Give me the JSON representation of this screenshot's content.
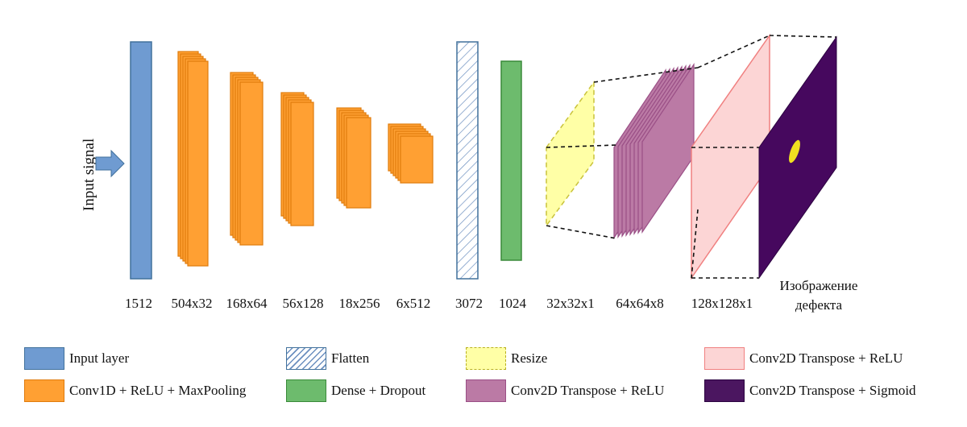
{
  "input_label": "Input signal",
  "layer_dims": [
    {
      "key": "input",
      "text": "1512"
    },
    {
      "key": "conv1",
      "text": "504x32"
    },
    {
      "key": "conv2",
      "text": "168x64"
    },
    {
      "key": "conv3",
      "text": "56x128"
    },
    {
      "key": "conv4",
      "text": "18x256"
    },
    {
      "key": "conv5",
      "text": "6x512"
    },
    {
      "key": "flatten",
      "text": "3072"
    },
    {
      "key": "dense",
      "text": "1024"
    },
    {
      "key": "resize",
      "text": "32x32x1"
    },
    {
      "key": "deconv1",
      "text": "64x64x8"
    },
    {
      "key": "deconv2",
      "text": "128x128x1"
    }
  ],
  "output_label": {
    "line1": "Изображение",
    "line2": "дефекта"
  },
  "legend": [
    {
      "key": "input_layer",
      "label": "Input layer"
    },
    {
      "key": "flatten",
      "label": "Flatten"
    },
    {
      "key": "resize",
      "label": "Resize"
    },
    {
      "key": "deconv_relu_pink",
      "label": "Conv2D Transpose + ReLU"
    },
    {
      "key": "conv1d",
      "label": "Conv1D + ReLU + MaxPooling"
    },
    {
      "key": "dense",
      "label": "Dense + Dropout"
    },
    {
      "key": "deconv_relu_purple",
      "label": "Conv2D Transpose + ReLU"
    },
    {
      "key": "deconv_sigmoid",
      "label": "Conv2D Transpose + Sigmoid"
    }
  ],
  "colors": {
    "input_fill": "#6f9bd1",
    "input_stroke": "#41719c",
    "conv_fill": "#ffa033",
    "conv_stroke": "#e07b0c",
    "flatten_stroke": "#41719c",
    "dense_fill": "#6dbb6d",
    "dense_stroke": "#3a8a3a",
    "resize_fill": "#ffffa6",
    "resize_stroke": "#c9c23a",
    "deconv_purple_fill": "#bb7aa5",
    "deconv_purple_stroke": "#9a4f86",
    "deconv_pink_fill": "#fcd5d5",
    "deconv_pink_stroke": "#f08080",
    "output_fill": "#46085e",
    "defect_fill": "#f0e020"
  }
}
